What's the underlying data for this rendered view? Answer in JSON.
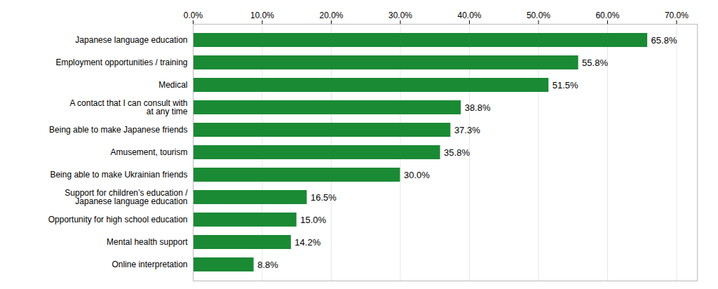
{
  "chart_data": {
    "type": "bar",
    "orientation": "horizontal",
    "categories": [
      "Online interpretation",
      "Mental health support",
      "Opportunity for high school education",
      "Support for children’s education /\nJapanese language education",
      "Being able to make Ukrainian friends",
      "Amusement, tourism",
      "Being able to make Japanese friends",
      "A contact that I can consult with\nat any time",
      "Medical",
      "Employment opportunities / training",
      "Japanese language education"
    ],
    "values": [
      8.8,
      14.2,
      15.0,
      16.5,
      30.0,
      35.8,
      37.3,
      38.8,
      51.5,
      55.8,
      65.8
    ],
    "value_labels": [
      "8.8%",
      "14.2%",
      "15.0%",
      "16.5%",
      "30.0%",
      "35.8%",
      "37.3%",
      "38.8%",
      "51.5%",
      "55.8%",
      "65.8%"
    ],
    "data_labels": true,
    "color": "#1a8a34",
    "xlim": [
      0,
      73
    ],
    "xticks": [
      {
        "value": 0,
        "label": "0.0%"
      },
      {
        "value": 10,
        "label": "10.0%"
      },
      {
        "value": 20,
        "label": "20.0%"
      },
      {
        "value": 30,
        "label": "30.0%"
      },
      {
        "value": 40,
        "label": "40.0%"
      },
      {
        "value": 50,
        "label": "50.0%"
      },
      {
        "value": 60,
        "label": "60.0%"
      },
      {
        "value": 70,
        "label": "70.0%"
      }
    ],
    "grid": true
  }
}
